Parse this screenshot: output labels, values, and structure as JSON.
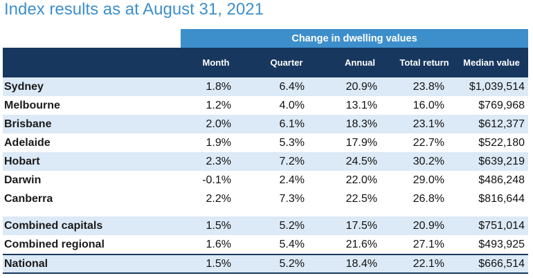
{
  "title": "Index results as at August 31, 2021",
  "band_label": "Change in dwelling values",
  "columns": [
    "Month",
    "Quarter",
    "Annual",
    "Total return",
    "Median value"
  ],
  "rows": [
    {
      "name": "Sydney",
      "month": "1.8%",
      "quarter": "6.4%",
      "annual": "20.9%",
      "total_return": "23.8%",
      "median": "$1,039,514"
    },
    {
      "name": "Melbourne",
      "month": "1.2%",
      "quarter": "4.0%",
      "annual": "13.1%",
      "total_return": "16.0%",
      "median": "$769,968"
    },
    {
      "name": "Brisbane",
      "month": "2.0%",
      "quarter": "6.1%",
      "annual": "18.3%",
      "total_return": "23.1%",
      "median": "$612,377"
    },
    {
      "name": "Adelaide",
      "month": "1.9%",
      "quarter": "5.3%",
      "annual": "17.9%",
      "total_return": "22.7%",
      "median": "$522,180"
    },
    {
      "name": "Hobart",
      "month": "2.3%",
      "quarter": "7.2%",
      "annual": "24.5%",
      "total_return": "30.2%",
      "median": "$639,219"
    },
    {
      "name": "Darwin",
      "month": "-0.1%",
      "quarter": "2.4%",
      "annual": "22.0%",
      "total_return": "29.0%",
      "median": "$486,248"
    },
    {
      "name": "Canberra",
      "month": "2.2%",
      "quarter": "7.3%",
      "annual": "22.5%",
      "total_return": "26.8%",
      "median": "$816,644"
    },
    {
      "name": "Combined capitals",
      "month": "1.5%",
      "quarter": "5.2%",
      "annual": "17.5%",
      "total_return": "20.9%",
      "median": "$751,014"
    },
    {
      "name": "Combined regional",
      "month": "1.6%",
      "quarter": "5.4%",
      "annual": "21.6%",
      "total_return": "27.1%",
      "median": "$493,925"
    },
    {
      "name": "National",
      "month": "1.5%",
      "quarter": "5.2%",
      "annual": "18.4%",
      "total_return": "22.1%",
      "median": "$666,514"
    }
  ],
  "colors": {
    "title": "#3d8fcb",
    "band": "#3d8fcb",
    "header": "#17375e",
    "row_shade": "#dce9f6"
  }
}
